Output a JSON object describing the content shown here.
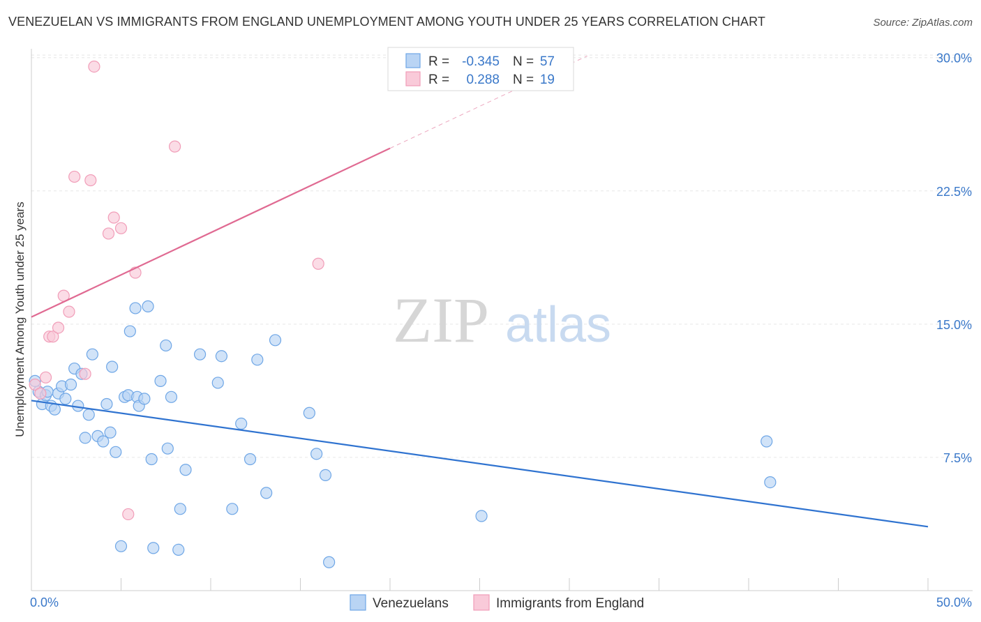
{
  "chart_data": {
    "type": "scatter",
    "title": "VENEZUELAN VS IMMIGRANTS FROM ENGLAND UNEMPLOYMENT AMONG YOUTH UNDER 25 YEARS CORRELATION CHART",
    "source": "Source: ZipAtlas.com",
    "ylabel": "Unemployment Among Youth under 25 years",
    "xlim": [
      0,
      50
    ],
    "ylim": [
      0,
      30.5
    ],
    "yticks": [
      7.5,
      15.0,
      22.5,
      30.0
    ],
    "ytick_labels": [
      "7.5%",
      "15.0%",
      "22.5%",
      "30.0%"
    ],
    "xtick_labels": [
      "0.0%",
      "50.0%"
    ],
    "grid": true,
    "watermark": {
      "main": "ZIP",
      "suffix": "atlas"
    },
    "legend_position": "top-center",
    "legend": {
      "row1": {
        "r_label": "R =",
        "r_value": "-0.345",
        "n_label": "N =",
        "n_value": "57"
      },
      "row2": {
        "r_label": "R =",
        "r_value": "0.288",
        "n_label": "N =",
        "n_value": "19"
      }
    },
    "series": [
      {
        "name": "Venezuelans",
        "color": "#6ea6e6",
        "fill": "#b9d4f4",
        "trend_color": "#2f73d0",
        "trend": {
          "x": [
            0,
            50
          ],
          "y": [
            10.7,
            3.6
          ]
        },
        "points": [
          [
            0.2,
            11.8
          ],
          [
            0.4,
            11.2
          ],
          [
            0.6,
            10.5
          ],
          [
            0.8,
            11.0
          ],
          [
            0.9,
            11.2
          ],
          [
            1.1,
            10.4
          ],
          [
            1.3,
            10.2
          ],
          [
            1.5,
            11.1
          ],
          [
            1.7,
            11.5
          ],
          [
            1.9,
            10.8
          ],
          [
            2.2,
            11.6
          ],
          [
            2.4,
            12.5
          ],
          [
            2.6,
            10.4
          ],
          [
            2.8,
            12.2
          ],
          [
            3.0,
            8.6
          ],
          [
            3.2,
            9.9
          ],
          [
            3.4,
            13.3
          ],
          [
            3.7,
            8.7
          ],
          [
            4.0,
            8.4
          ],
          [
            4.2,
            10.5
          ],
          [
            4.4,
            8.9
          ],
          [
            4.5,
            12.6
          ],
          [
            4.7,
            7.8
          ],
          [
            5.0,
            2.5
          ],
          [
            5.2,
            10.9
          ],
          [
            5.4,
            11.0
          ],
          [
            5.5,
            14.6
          ],
          [
            5.8,
            15.9
          ],
          [
            5.9,
            10.9
          ],
          [
            6.0,
            10.4
          ],
          [
            6.3,
            10.8
          ],
          [
            6.5,
            16.0
          ],
          [
            6.7,
            7.4
          ],
          [
            6.8,
            2.4
          ],
          [
            7.2,
            11.8
          ],
          [
            7.5,
            13.8
          ],
          [
            7.6,
            8.0
          ],
          [
            7.8,
            10.9
          ],
          [
            8.2,
            2.3
          ],
          [
            8.3,
            4.6
          ],
          [
            8.6,
            6.8
          ],
          [
            9.4,
            13.3
          ],
          [
            10.4,
            11.7
          ],
          [
            10.6,
            13.2
          ],
          [
            11.2,
            4.6
          ],
          [
            11.7,
            9.4
          ],
          [
            12.2,
            7.4
          ],
          [
            12.6,
            13.0
          ],
          [
            13.1,
            5.5
          ],
          [
            13.6,
            14.1
          ],
          [
            15.5,
            10.0
          ],
          [
            15.9,
            7.7
          ],
          [
            16.4,
            6.5
          ],
          [
            16.6,
            1.6
          ],
          [
            25.1,
            4.2
          ],
          [
            41.0,
            8.4
          ],
          [
            41.2,
            6.1
          ]
        ]
      },
      {
        "name": "Immigrants from England",
        "color": "#f19db8",
        "fill": "#f9cad9",
        "trend_color": "#e06a92",
        "trend": {
          "x": [
            0,
            20
          ],
          "y": [
            15.4,
            24.9
          ]
        },
        "trend_dashed": {
          "x": [
            20,
            31
          ],
          "y": [
            24.9,
            30.1
          ]
        },
        "points": [
          [
            0.2,
            11.6
          ],
          [
            0.5,
            11.1
          ],
          [
            0.8,
            12.0
          ],
          [
            1.0,
            14.3
          ],
          [
            1.2,
            14.3
          ],
          [
            1.5,
            14.8
          ],
          [
            1.8,
            16.6
          ],
          [
            2.1,
            15.7
          ],
          [
            2.4,
            23.3
          ],
          [
            3.0,
            12.2
          ],
          [
            3.3,
            23.1
          ],
          [
            3.5,
            29.5
          ],
          [
            4.3,
            20.1
          ],
          [
            4.6,
            21.0
          ],
          [
            5.0,
            20.4
          ],
          [
            5.4,
            4.3
          ],
          [
            5.8,
            17.9
          ],
          [
            8.0,
            25.0
          ],
          [
            16.0,
            18.4
          ]
        ]
      }
    ]
  }
}
